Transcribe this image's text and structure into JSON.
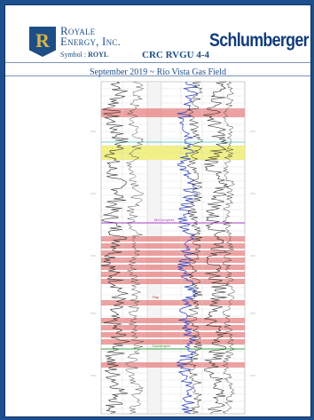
{
  "header": {
    "logo_letter": "R",
    "company_line1": "Royale",
    "company_line2": "Energy, Inc.",
    "symbol_label": "Symbol : ",
    "symbol_value": "ROYL",
    "well_name": "CRC RVGU 4-4",
    "brand": "Schlumberger",
    "subtitle": "September 2019 ~ Rio Vista Gas Field"
  },
  "colors": {
    "background": "#1c4f8c",
    "brand_blue": "#1f4e86",
    "pay_zone": "#e88080",
    "sand_zone": "#f0ef7a",
    "marker_magenta": "#b040d0",
    "marker_green": "#40a040"
  },
  "log": {
    "marker_labels": [
      "McCampbell",
      "Pay",
      "Domengine"
    ]
  }
}
